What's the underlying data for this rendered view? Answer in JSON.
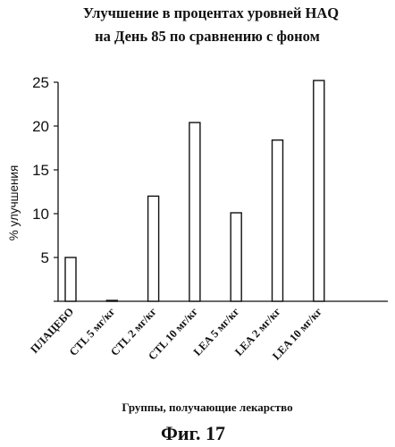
{
  "chart_data": {
    "type": "bar",
    "title_lines": [
      "Улучшение в процентах уровней HAQ",
      "на День 85 по сравнению с фоном"
    ],
    "ylabel": "% улучшения",
    "xlabel": "Группы, получающие лекарство",
    "categories": [
      "ПЛАЦЕБО",
      "CTL 5 мг/кг",
      "CTL 2 мг/кг",
      "CTL 10 мг/кг",
      "LEA 5 мг/кг",
      "LEA 2 мг/кг",
      "LEA 10 мг/кг"
    ],
    "values": [
      5.0,
      0.1,
      12.0,
      20.4,
      10.1,
      18.4,
      25.2
    ],
    "ylim": [
      0,
      25
    ],
    "yticks": [
      0,
      5,
      10,
      15,
      20,
      25
    ],
    "ytick_labels": [
      "5",
      "10",
      "15",
      "20",
      "25"
    ],
    "bar_color": "#ffffff",
    "edge_color": "#111111",
    "grid": false,
    "legend": "none"
  },
  "caption": "Фиг. 17"
}
